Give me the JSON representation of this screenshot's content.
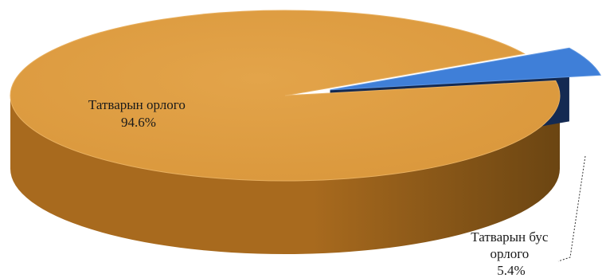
{
  "chart_data": {
    "type": "pie",
    "title": "",
    "slices": [
      {
        "label_lines": [
          "Татварын орлого"
        ],
        "value": 94.6,
        "percent_label": "94.6%",
        "color": "#D9963A",
        "side_color": "#A86A1E",
        "side_dark_color": "#6B4512"
      },
      {
        "label_lines": [
          "Татварын бус",
          "орлого"
        ],
        "value": 5.4,
        "percent_label": "5.4%",
        "color": "#3F7FD8",
        "side_color": "#1E3C70",
        "side_dark_color": "#142A52"
      }
    ],
    "style": "3d-exploded",
    "legend": "none"
  }
}
